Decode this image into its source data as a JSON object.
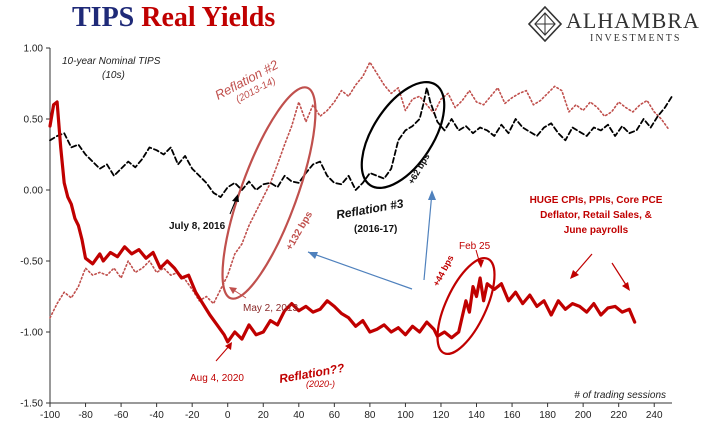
{
  "header": {
    "title_part1": "TIPS",
    "title_part2": "Real Yields"
  },
  "logo": {
    "name": "ALHAMBRA",
    "sub": "INVESTMENTS",
    "icon": "diamond-emblem-icon"
  },
  "colors": {
    "title_blue": "#1f2a78",
    "red_series": "#c00000",
    "pink_series": "#c0504d",
    "black_series": "#000000",
    "arrow_blue": "#4f81bd"
  },
  "chart_data": {
    "type": "line",
    "title": "TIPS Real Yields",
    "xlabel": "# of trading sessions",
    "ylabel": "",
    "series_label": "10-year Nominal TIPS\n(10s)",
    "xlim": [
      -100,
      250
    ],
    "ylim": [
      -1.5,
      1.0
    ],
    "x_ticks": [
      -100,
      -80,
      -60,
      -40,
      -20,
      0,
      20,
      40,
      60,
      80,
      100,
      120,
      140,
      160,
      180,
      200,
      220,
      240
    ],
    "y_ticks": [
      1.0,
      0.5,
      0.0,
      -0.5,
      -1.0,
      -1.5
    ],
    "y_tick_labels": [
      "1.00",
      "0.50",
      "0.00",
      "-0.50",
      "-1.00",
      "-1.50"
    ],
    "grid": false,
    "series": [
      {
        "style": "solid-thick",
        "color": "#c00000",
        "x": [
          -100,
          -98,
          -96,
          -94,
          -92,
          -90,
          -88,
          -86,
          -84,
          -82,
          -80,
          -76,
          -72,
          -70,
          -66,
          -62,
          -58,
          -54,
          -50,
          -46,
          -42,
          -38,
          -34,
          -30,
          -26,
          -22,
          -18,
          -14,
          -10,
          -6,
          -2,
          0,
          4,
          8,
          12,
          16,
          20,
          24,
          28,
          32,
          36,
          40,
          44,
          48,
          52,
          56,
          60,
          64,
          68,
          72,
          76,
          80,
          84,
          88,
          92,
          96,
          100,
          104,
          108,
          112,
          116,
          118,
          122,
          126,
          130,
          134,
          136,
          138,
          140,
          142,
          144,
          146,
          150,
          154,
          158,
          162,
          166,
          170,
          174,
          178,
          182,
          186,
          190,
          194,
          198,
          202,
          206,
          210,
          214,
          218,
          222,
          226,
          229
        ],
        "y": [
          0.45,
          0.6,
          0.62,
          0.3,
          0.05,
          -0.05,
          -0.1,
          -0.2,
          -0.25,
          -0.35,
          -0.48,
          -0.52,
          -0.45,
          -0.5,
          -0.44,
          -0.47,
          -0.4,
          -0.45,
          -0.42,
          -0.48,
          -0.44,
          -0.55,
          -0.5,
          -0.55,
          -0.62,
          -0.6,
          -0.72,
          -0.8,
          -0.88,
          -0.95,
          -1.02,
          -1.07,
          -1.0,
          -1.05,
          -0.95,
          -1.02,
          -1.0,
          -0.92,
          -0.95,
          -0.85,
          -0.8,
          -0.85,
          -0.82,
          -0.86,
          -0.84,
          -0.78,
          -0.82,
          -0.87,
          -0.9,
          -0.96,
          -0.92,
          -1.0,
          -0.98,
          -0.95,
          -1.0,
          -0.97,
          -1.02,
          -0.96,
          -1.0,
          -0.93,
          -0.98,
          -1.03,
          -1.0,
          -1.04,
          -1.0,
          -0.78,
          -0.86,
          -0.68,
          -0.75,
          -0.62,
          -0.78,
          -0.66,
          -0.7,
          -0.66,
          -0.78,
          -0.72,
          -0.8,
          -0.74,
          -0.82,
          -0.78,
          -0.88,
          -0.78,
          -0.84,
          -0.8,
          -0.82,
          -0.86,
          -0.8,
          -0.88,
          -0.83,
          -0.82,
          -0.86,
          -0.84,
          -0.93
        ]
      },
      {
        "style": "dotted",
        "color": "#c0504d",
        "x": [
          -100,
          -96,
          -92,
          -88,
          -84,
          -80,
          -76,
          -72,
          -68,
          -64,
          -60,
          -56,
          -52,
          -48,
          -44,
          -40,
          -36,
          -32,
          -28,
          -24,
          -20,
          -16,
          -12,
          -8,
          -4,
          0,
          4,
          8,
          12,
          16,
          20,
          24,
          28,
          32,
          36,
          40,
          44,
          48,
          52,
          56,
          60,
          64,
          68,
          72,
          76,
          80,
          84,
          88,
          92,
          96,
          100,
          104,
          108,
          112,
          116,
          120,
          124,
          128,
          132,
          136,
          140,
          144,
          148,
          152,
          156,
          160,
          164,
          168,
          172,
          176,
          180,
          184,
          188,
          192,
          196,
          200,
          204,
          208,
          212,
          216,
          220,
          224,
          228,
          232,
          236,
          240,
          244,
          248
        ],
        "y": [
          -0.9,
          -0.8,
          -0.72,
          -0.76,
          -0.68,
          -0.55,
          -0.6,
          -0.58,
          -0.6,
          -0.55,
          -0.62,
          -0.5,
          -0.58,
          -0.55,
          -0.5,
          -0.58,
          -0.55,
          -0.6,
          -0.58,
          -0.63,
          -0.7,
          -0.78,
          -0.75,
          -0.8,
          -0.7,
          -0.6,
          -0.45,
          -0.38,
          -0.25,
          -0.15,
          -0.05,
          0.05,
          0.18,
          0.32,
          0.45,
          0.62,
          0.48,
          0.6,
          0.52,
          0.56,
          0.62,
          0.7,
          0.66,
          0.74,
          0.8,
          0.9,
          0.82,
          0.74,
          0.68,
          0.72,
          0.56,
          0.64,
          0.66,
          0.6,
          0.54,
          0.64,
          0.68,
          0.58,
          0.63,
          0.7,
          0.62,
          0.6,
          0.66,
          0.72,
          0.61,
          0.65,
          0.68,
          0.7,
          0.6,
          0.63,
          0.68,
          0.73,
          0.7,
          0.55,
          0.6,
          0.56,
          0.62,
          0.58,
          0.52,
          0.55,
          0.62,
          0.58,
          0.55,
          0.6,
          0.63,
          0.55,
          0.5,
          0.43
        ]
      },
      {
        "style": "dashed",
        "color": "#000000",
        "x": [
          -100,
          -96,
          -92,
          -88,
          -84,
          -80,
          -76,
          -72,
          -68,
          -64,
          -60,
          -56,
          -52,
          -48,
          -44,
          -40,
          -36,
          -32,
          -28,
          -24,
          -20,
          -16,
          -12,
          -8,
          -4,
          0,
          4,
          8,
          12,
          16,
          20,
          24,
          28,
          32,
          36,
          40,
          44,
          48,
          52,
          56,
          60,
          64,
          68,
          72,
          76,
          80,
          84,
          88,
          92,
          96,
          100,
          104,
          108,
          110,
          112,
          114,
          118,
          122,
          126,
          130,
          134,
          138,
          142,
          146,
          150,
          154,
          158,
          162,
          166,
          170,
          174,
          178,
          182,
          186,
          190,
          194,
          198,
          202,
          206,
          210,
          214,
          218,
          222,
          226,
          230,
          234,
          238,
          242,
          246,
          250
        ],
        "y": [
          0.35,
          0.38,
          0.4,
          0.3,
          0.32,
          0.25,
          0.2,
          0.15,
          0.18,
          0.1,
          0.15,
          0.2,
          0.16,
          0.22,
          0.3,
          0.28,
          0.25,
          0.3,
          0.18,
          0.24,
          0.15,
          0.1,
          0.05,
          -0.02,
          -0.05,
          0.02,
          0.05,
          0.0,
          0.06,
          0.0,
          0.04,
          0.05,
          0.02,
          0.1,
          0.06,
          0.05,
          0.12,
          0.18,
          0.2,
          0.1,
          0.05,
          0.04,
          0.1,
          0.0,
          0.05,
          0.12,
          0.1,
          0.08,
          0.15,
          0.35,
          0.42,
          0.45,
          0.5,
          0.6,
          0.72,
          0.62,
          0.48,
          0.42,
          0.5,
          0.42,
          0.45,
          0.4,
          0.44,
          0.42,
          0.38,
          0.46,
          0.4,
          0.5,
          0.44,
          0.41,
          0.38,
          0.44,
          0.47,
          0.4,
          0.35,
          0.44,
          0.41,
          0.38,
          0.44,
          0.42,
          0.46,
          0.38,
          0.45,
          0.4,
          0.42,
          0.5,
          0.44,
          0.52,
          0.58,
          0.66
        ]
      }
    ],
    "annotations": {
      "reflation2": "Reflation #2",
      "reflation2_years": "(2013-14)",
      "reflation3": "Reflation #3",
      "reflation3_years": "(2016-17)",
      "reflation_q": "Reflation??",
      "reflation_q_years": "(2020-)",
      "july2016": "July 8, 2016",
      "may2013": "May 2, 2013",
      "aug2020": "Aug 4, 2020",
      "feb25": "Feb 25",
      "bps132": "+132 bps",
      "bps62": "+62 bps",
      "bps44": "+44 bps",
      "huge1": "HUGE CPIs, PPIs, Core PCE",
      "huge2": "Deflator, Retail Sales, &",
      "huge3": "June payrolls"
    }
  }
}
